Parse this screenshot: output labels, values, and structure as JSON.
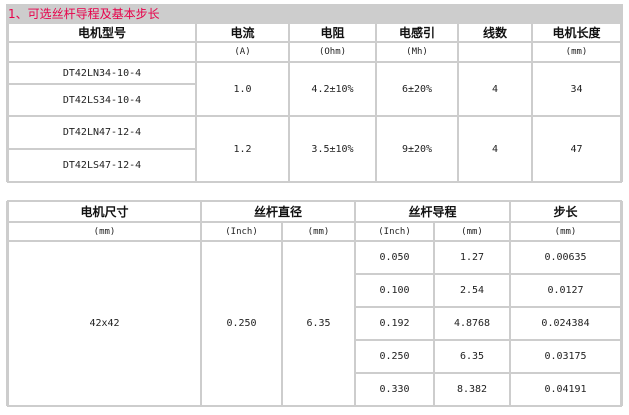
{
  "section_title": "1、可选丝杆导程及基本步长",
  "table1": {
    "headers": [
      "电机型号",
      "电流",
      "电阻",
      "电感引",
      "线数",
      "电机长度"
    ],
    "units": [
      "",
      "(A)",
      "(Ohm)",
      "(Mh)",
      "",
      "(mm)"
    ],
    "groups": [
      {
        "models": [
          "DT42LN34-10-4",
          "DT42LS34-10-4"
        ],
        "current": "1.0",
        "resistance": "4.2±10%",
        "inductance": "6±20%",
        "wires": "4",
        "length": "34"
      },
      {
        "models": [
          "DT42LN47-12-4",
          "DT42LS47-12-4"
        ],
        "current": "1.2",
        "resistance": "3.5±10%",
        "inductance": "9±20%",
        "wires": "4",
        "length": "47"
      }
    ]
  },
  "table2": {
    "headers": [
      "电机尺寸",
      "丝杆直径",
      "丝杆导程",
      "步长"
    ],
    "units": [
      "(mm)",
      "(Inch)",
      "(mm)",
      "(Inch)",
      "(mm)",
      "(mm)"
    ],
    "motor_size": "42x42",
    "diameter_inch": "0.250",
    "diameter_mm": "6.35",
    "rows": [
      {
        "lead_inch": "0.050",
        "lead_mm": "1.27",
        "step": "0.00635"
      },
      {
        "lead_inch": "0.100",
        "lead_mm": "2.54",
        "step": "0.0127"
      },
      {
        "lead_inch": "0.192",
        "lead_mm": "4.8768",
        "step": "0.024384"
      },
      {
        "lead_inch": "0.250",
        "lead_mm": "6.35",
        "step": "0.03175"
      },
      {
        "lead_inch": "0.330",
        "lead_mm": "8.382",
        "step": "0.04191"
      }
    ]
  }
}
